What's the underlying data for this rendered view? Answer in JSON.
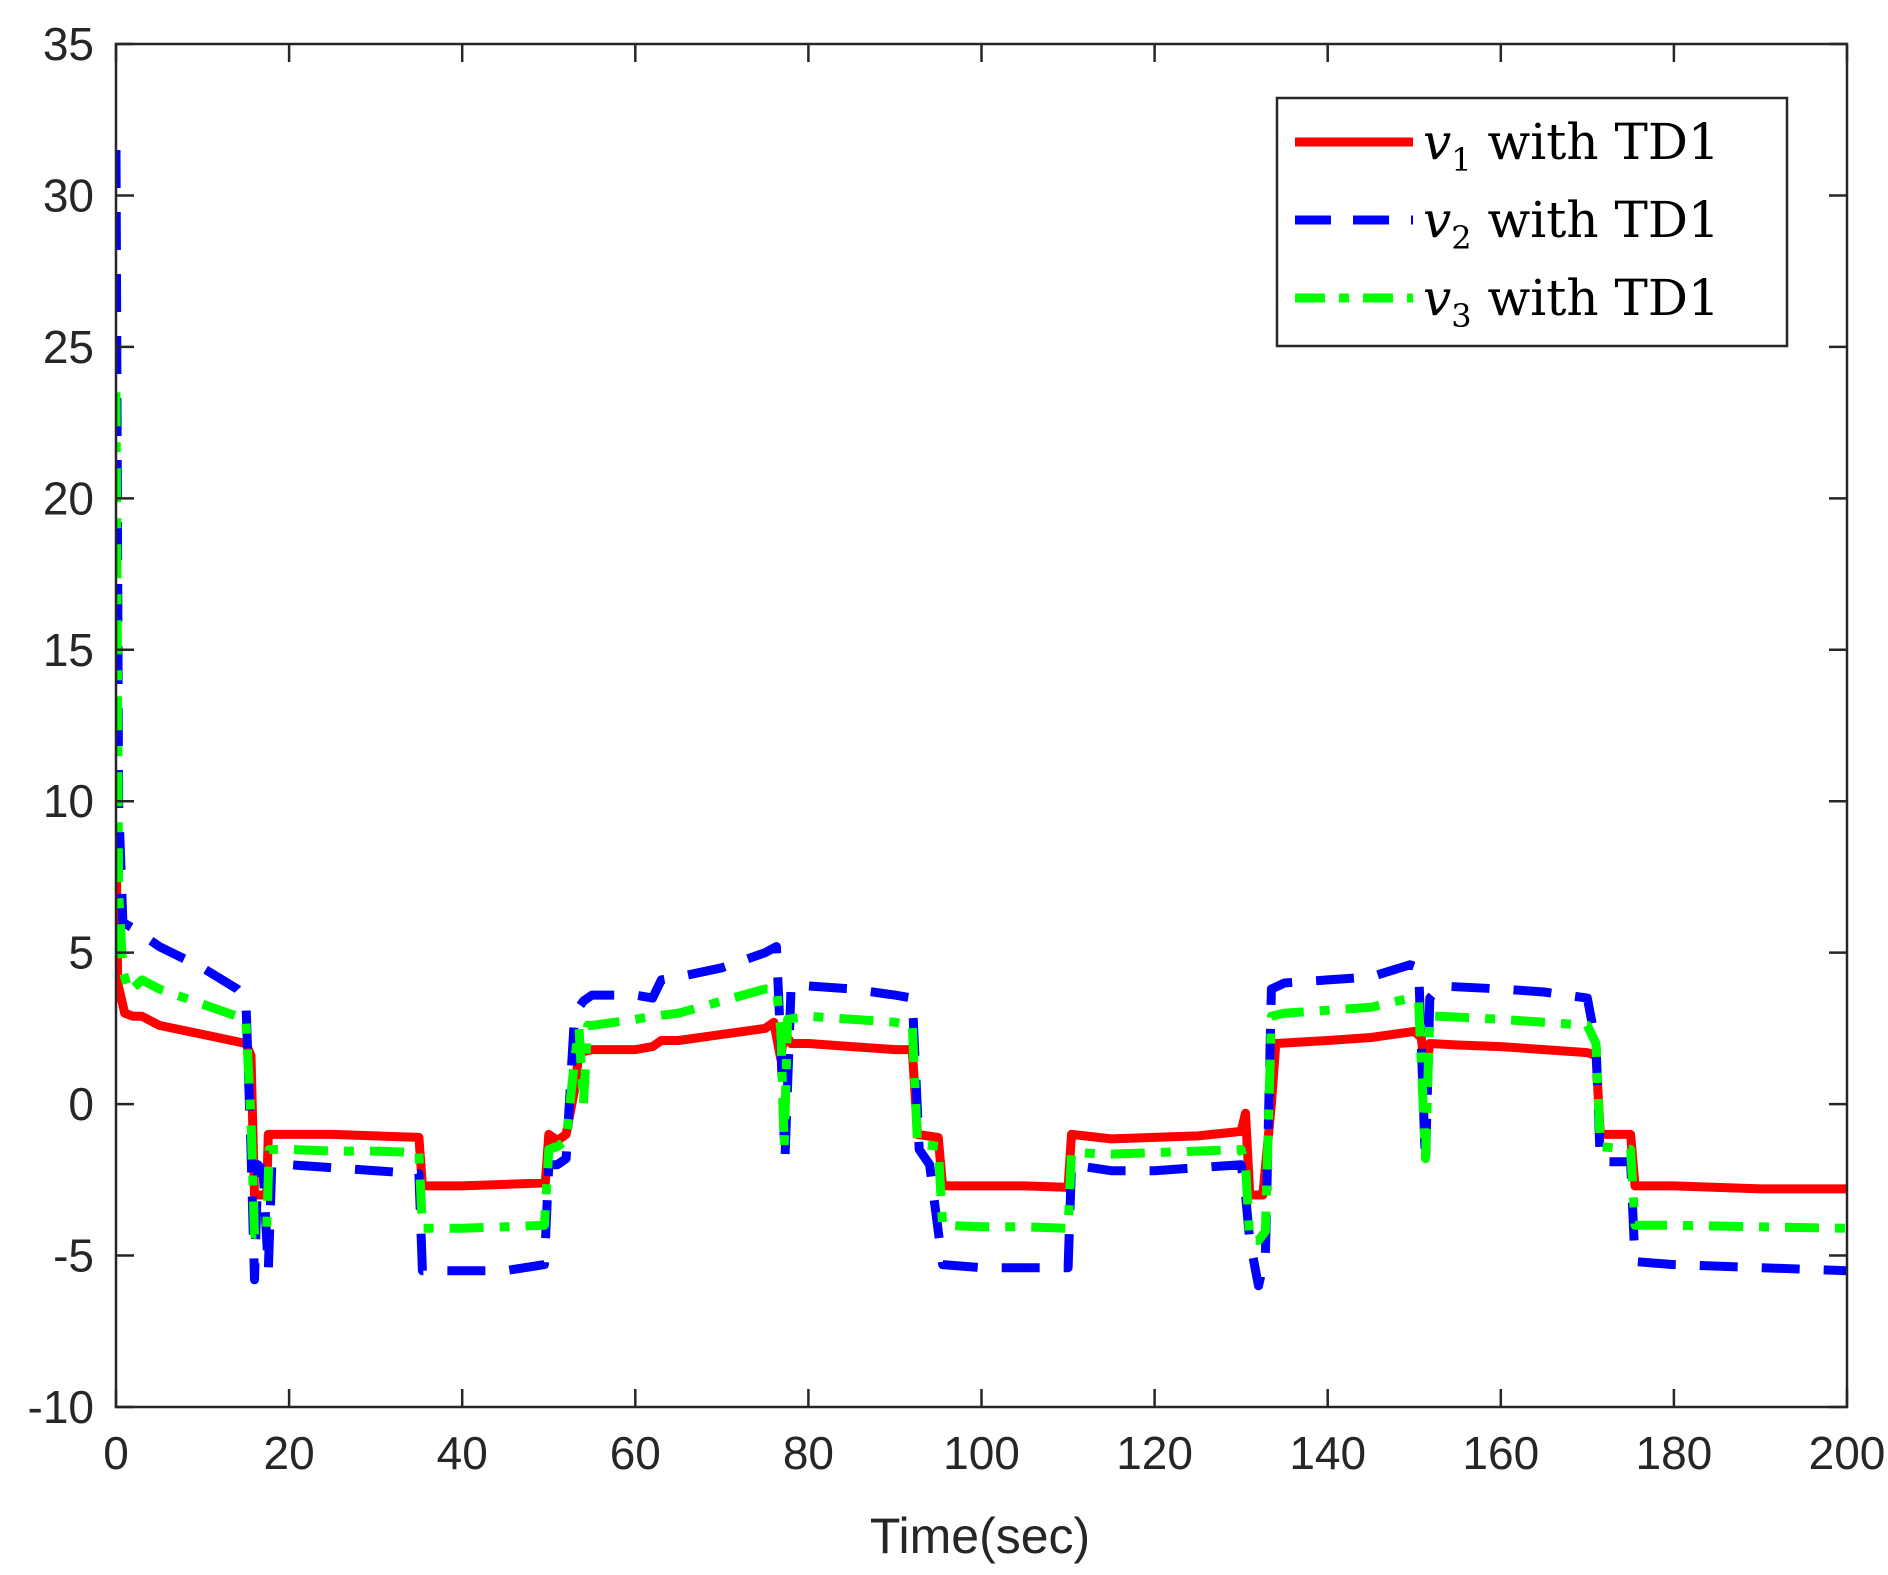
{
  "chart_data": {
    "type": "line",
    "xlabel": "Time(sec)",
    "ylabel": "",
    "title": "",
    "xlim": [
      0,
      200
    ],
    "ylim": [
      -10,
      35
    ],
    "xticks": [
      0,
      20,
      40,
      60,
      80,
      100,
      120,
      140,
      160,
      180,
      200
    ],
    "yticks": [
      -10,
      -5,
      0,
      5,
      10,
      15,
      20,
      25,
      30,
      35
    ],
    "xtick_labels": [
      "0",
      "20",
      "40",
      "60",
      "80",
      "100",
      "120",
      "140",
      "160",
      "180",
      "200"
    ],
    "ytick_labels": [
      "-10",
      "-5",
      "0",
      "5",
      "10",
      "15",
      "20",
      "25",
      "30",
      "35"
    ],
    "grid": false,
    "legend_position": "top-right",
    "series": [
      {
        "name": "v1 with TD1",
        "symbol": "v",
        "subscript": "1",
        "suffix": " with TD1",
        "color": "#ff0000",
        "style": "solid",
        "points": [
          [
            0,
            9
          ],
          [
            0.2,
            4
          ],
          [
            0.6,
            3.5
          ],
          [
            1,
            3
          ],
          [
            2,
            2.9
          ],
          [
            3,
            2.9
          ],
          [
            5,
            2.6
          ],
          [
            10,
            2.3
          ],
          [
            15,
            2
          ],
          [
            15.6,
            1.6
          ],
          [
            16,
            -3
          ],
          [
            17.4,
            -3
          ],
          [
            17.6,
            -1
          ],
          [
            20,
            -1
          ],
          [
            25,
            -1
          ],
          [
            30,
            -1.05
          ],
          [
            35,
            -1.1
          ],
          [
            35.4,
            -2.7
          ],
          [
            40,
            -2.7
          ],
          [
            45,
            -2.65
          ],
          [
            49.6,
            -2.6
          ],
          [
            50,
            -1
          ],
          [
            51,
            -1.2
          ],
          [
            52,
            -1
          ],
          [
            53,
            0.5
          ],
          [
            53.5,
            1.7
          ],
          [
            55,
            1.8
          ],
          [
            60,
            1.8
          ],
          [
            62,
            1.9
          ],
          [
            63,
            2.1
          ],
          [
            65,
            2.1
          ],
          [
            70,
            2.3
          ],
          [
            75,
            2.5
          ],
          [
            76,
            2.7
          ],
          [
            76.8,
            1.5
          ],
          [
            77.2,
            2.4
          ],
          [
            78,
            2
          ],
          [
            80,
            2
          ],
          [
            85,
            1.9
          ],
          [
            90,
            1.8
          ],
          [
            92,
            1.8
          ],
          [
            92.6,
            -1
          ],
          [
            95,
            -1.1
          ],
          [
            95.5,
            -2.7
          ],
          [
            100,
            -2.7
          ],
          [
            105,
            -2.7
          ],
          [
            110,
            -2.75
          ],
          [
            110.4,
            -1
          ],
          [
            115,
            -1.15
          ],
          [
            120,
            -1.1
          ],
          [
            125,
            -1.05
          ],
          [
            130,
            -0.9
          ],
          [
            130.5,
            -0.3
          ],
          [
            131,
            -3
          ],
          [
            132.5,
            -3
          ],
          [
            133.5,
            0
          ],
          [
            134,
            2
          ],
          [
            140,
            2.1
          ],
          [
            145,
            2.2
          ],
          [
            150,
            2.4
          ],
          [
            150.8,
            2.2
          ],
          [
            151.3,
            1
          ],
          [
            151.8,
            2.0
          ],
          [
            155,
            1.95
          ],
          [
            160,
            1.9
          ],
          [
            165,
            1.8
          ],
          [
            170,
            1.7
          ],
          [
            171,
            1.6
          ],
          [
            171.5,
            -1
          ],
          [
            175,
            -1
          ],
          [
            175.5,
            -2.7
          ],
          [
            180,
            -2.7
          ],
          [
            190,
            -2.8
          ],
          [
            200,
            -2.8
          ]
        ]
      },
      {
        "name": "v2 with TD1",
        "symbol": "v",
        "subscript": "2",
        "suffix": " with TD1",
        "color": "#0000ff",
        "style": "dashed",
        "points": [
          [
            0,
            31.5
          ],
          [
            0.3,
            10
          ],
          [
            0.8,
            6
          ],
          [
            2,
            5.8
          ],
          [
            3,
            5.6
          ],
          [
            5,
            5.2
          ],
          [
            10,
            4.5
          ],
          [
            14,
            3.8
          ],
          [
            15,
            3.5
          ],
          [
            15.6,
            -1.5
          ],
          [
            16,
            -5.8
          ],
          [
            16.4,
            -2
          ],
          [
            17,
            -2.2
          ],
          [
            17.6,
            -5.5
          ],
          [
            18,
            -2
          ],
          [
            20,
            -2
          ],
          [
            25,
            -2.1
          ],
          [
            30,
            -2.2
          ],
          [
            35,
            -2.3
          ],
          [
            35.4,
            -5.5
          ],
          [
            40,
            -5.5
          ],
          [
            45,
            -5.5
          ],
          [
            49.5,
            -5.3
          ],
          [
            50,
            -2
          ],
          [
            51,
            -2
          ],
          [
            52,
            -1.8
          ],
          [
            53,
            3
          ],
          [
            54,
            3.4
          ],
          [
            55,
            3.6
          ],
          [
            60,
            3.6
          ],
          [
            62,
            3.5
          ],
          [
            63,
            4.1
          ],
          [
            65,
            4.2
          ],
          [
            70,
            4.5
          ],
          [
            75,
            5
          ],
          [
            76.3,
            5.2
          ],
          [
            76.8,
            2
          ],
          [
            77.3,
            -1.8
          ],
          [
            78,
            3.9
          ],
          [
            80,
            3.9
          ],
          [
            85,
            3.8
          ],
          [
            90,
            3.6
          ],
          [
            92,
            3.5
          ],
          [
            92.8,
            -1.5
          ],
          [
            94,
            -2
          ],
          [
            95.5,
            -5.3
          ],
          [
            100,
            -5.4
          ],
          [
            105,
            -5.4
          ],
          [
            110,
            -5.4
          ],
          [
            110.4,
            -2
          ],
          [
            115,
            -2.2
          ],
          [
            120,
            -2.2
          ],
          [
            125,
            -2.1
          ],
          [
            130,
            -2
          ],
          [
            130.5,
            -3
          ],
          [
            131,
            -4.5
          ],
          [
            132,
            -6
          ],
          [
            132.8,
            -5
          ],
          [
            133.5,
            3.8
          ],
          [
            135,
            4.0
          ],
          [
            140,
            4.1
          ],
          [
            145,
            4.2
          ],
          [
            149.5,
            4.6
          ],
          [
            150.5,
            4.5
          ],
          [
            151.3,
            -2
          ],
          [
            151.8,
            3.5
          ],
          [
            153,
            3.9
          ],
          [
            160,
            3.8
          ],
          [
            165,
            3.7
          ],
          [
            170,
            3.5
          ],
          [
            171,
            2
          ],
          [
            171.5,
            -1.9
          ],
          [
            175,
            -1.9
          ],
          [
            175.5,
            -5.2
          ],
          [
            180,
            -5.3
          ],
          [
            190,
            -5.4
          ],
          [
            200,
            -5.5
          ]
        ]
      },
      {
        "name": "v3 with TD1",
        "symbol": "v",
        "subscript": "3",
        "suffix": " with TD1",
        "color": "#00ff00",
        "style": "dashdot",
        "points": [
          [
            0,
            23.5
          ],
          [
            0.3,
            7
          ],
          [
            0.8,
            4.4
          ],
          [
            1.5,
            3.7
          ],
          [
            3,
            4.1
          ],
          [
            5,
            3.8
          ],
          [
            10,
            3.3
          ],
          [
            15,
            2.8
          ],
          [
            15.6,
            -0.5
          ],
          [
            16,
            -4.3
          ],
          [
            17.4,
            -4.2
          ],
          [
            17.7,
            -1.5
          ],
          [
            20,
            -1.5
          ],
          [
            25,
            -1.55
          ],
          [
            30,
            -1.55
          ],
          [
            35,
            -1.6
          ],
          [
            35.4,
            -4.1
          ],
          [
            40,
            -4.1
          ],
          [
            45,
            -4.05
          ],
          [
            49.5,
            -4
          ],
          [
            50,
            -1.5
          ],
          [
            51,
            -1.4
          ],
          [
            52,
            -1.2
          ],
          [
            53,
            1.5
          ],
          [
            53.5,
            2.5
          ],
          [
            54,
            0
          ],
          [
            54.5,
            2.6
          ],
          [
            55,
            2.6
          ],
          [
            60,
            2.8
          ],
          [
            62,
            2.9
          ],
          [
            65,
            3
          ],
          [
            70,
            3.4
          ],
          [
            75,
            3.8
          ],
          [
            76.3,
            3.8
          ],
          [
            76.8,
            2.5
          ],
          [
            77.2,
            -1.4
          ],
          [
            77.6,
            2.8
          ],
          [
            80,
            2.9
          ],
          [
            85,
            2.8
          ],
          [
            90,
            2.7
          ],
          [
            92,
            2.6
          ],
          [
            92.6,
            -1.3
          ],
          [
            95,
            -1.4
          ],
          [
            95.5,
            -4.0
          ],
          [
            100,
            -4.05
          ],
          [
            105,
            -4.05
          ],
          [
            110,
            -4.1
          ],
          [
            110.4,
            -1.6
          ],
          [
            115,
            -1.65
          ],
          [
            120,
            -1.6
          ],
          [
            125,
            -1.55
          ],
          [
            130,
            -1.5
          ],
          [
            130.5,
            -2
          ],
          [
            131,
            -4.5
          ],
          [
            132,
            -4.5
          ],
          [
            132.8,
            -4.2
          ],
          [
            133.5,
            2.9
          ],
          [
            135,
            3.0
          ],
          [
            140,
            3.1
          ],
          [
            145,
            3.2
          ],
          [
            149.5,
            3.5
          ],
          [
            150.5,
            3.4
          ],
          [
            151.3,
            -1.8
          ],
          [
            151.8,
            2.9
          ],
          [
            153,
            2.9
          ],
          [
            160,
            2.8
          ],
          [
            165,
            2.7
          ],
          [
            170,
            2.6
          ],
          [
            171,
            2.0
          ],
          [
            171.5,
            -1.4
          ],
          [
            175,
            -1.5
          ],
          [
            175.5,
            -4.0
          ],
          [
            180,
            -4.0
          ],
          [
            190,
            -4.05
          ],
          [
            200,
            -4.1
          ]
        ]
      }
    ]
  }
}
